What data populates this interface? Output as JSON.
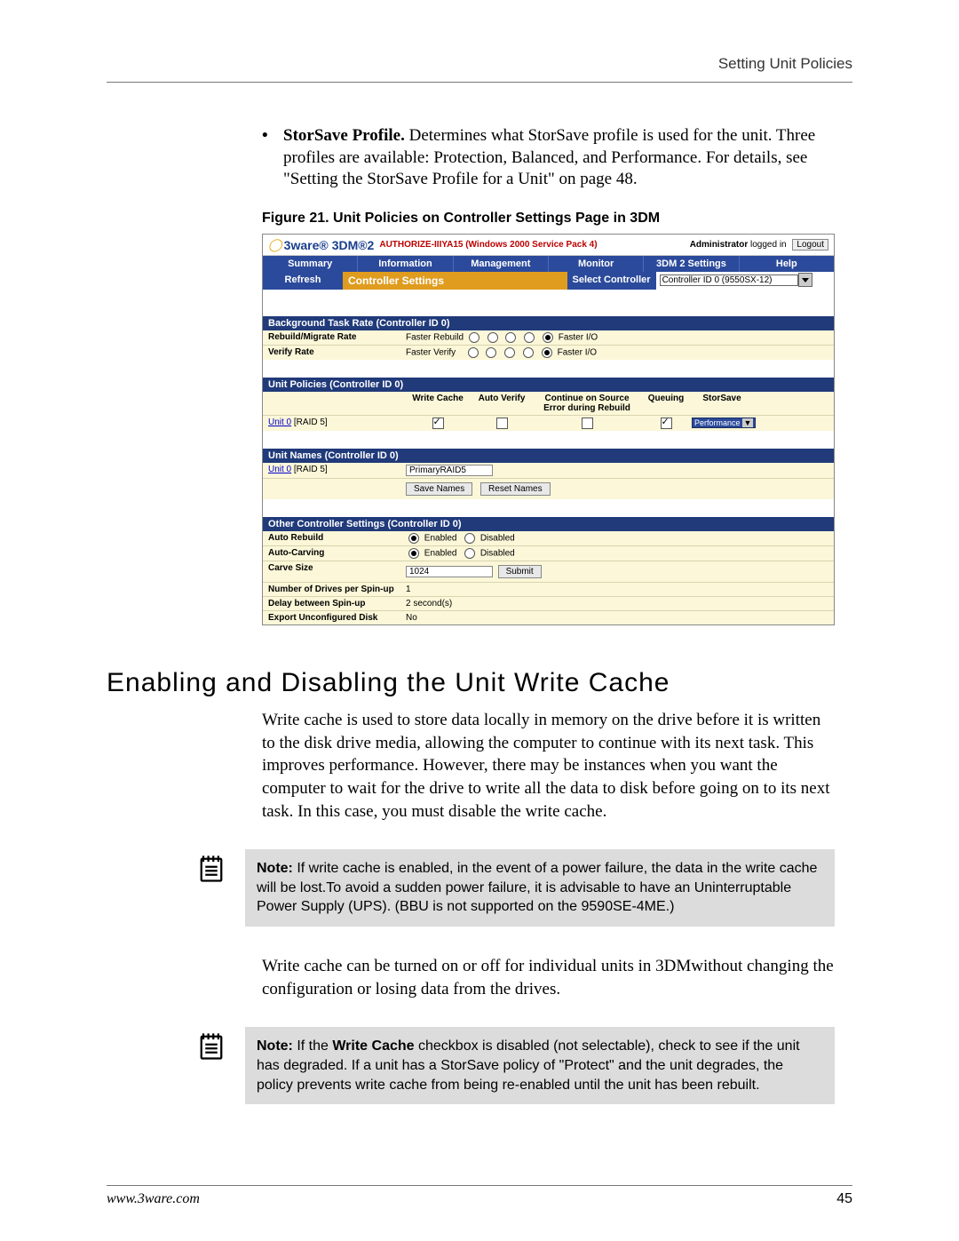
{
  "header": {
    "right": "Setting Unit Policies"
  },
  "bullet": {
    "lead": "StorSave Profile.",
    "rest": " Determines what StorSave profile is used for the unit. Three profiles are available: Protection, Balanced, and Performance. For details, see \"Setting the StorSave Profile for a Unit\" on page 48."
  },
  "figure_caption": "Figure 21.  Unit Policies on Controller Settings Page in 3DM",
  "ss": {
    "logo1": "3ware®",
    "logo2": "3DM®2",
    "auth": "AUTHORIZE-IIIYA15 (Windows 2000 Service Pack 4)",
    "adm": "Administrator",
    "logged": " logged in ",
    "logout": "Logout",
    "tabs": [
      "Summary",
      "Information",
      "Management",
      "Monitor",
      "3DM 2 Settings",
      "Help"
    ],
    "refresh": "Refresh",
    "cs": "Controller Settings",
    "sc": "Select Controller",
    "sel": "Controller ID 0 (9550SX-12)",
    "sec1": "Background Task Rate (Controller ID 0)",
    "r1l": "Rebuild/Migrate Rate",
    "r1a": "Faster Rebuild",
    "r1b": "Faster I/O",
    "r2l": "Verify Rate",
    "r2a": "Faster Verify",
    "r2b": "Faster I/O",
    "sec2": "Unit Policies (Controller ID 0)",
    "uh": [
      "Write Cache",
      "Auto Verify",
      "Continue on Source Error during Rebuild",
      "Queuing",
      "StorSave"
    ],
    "unit0": "Unit 0",
    "raid5": "[RAID 5]",
    "perf": "Performance",
    "sec3": "Unit Names (Controller ID 0)",
    "unitname": "PrimaryRAID5",
    "save": "Save Names",
    "reset": "Reset Names",
    "sec4": "Other Controller Settings (Controller ID 0)",
    "oc": [
      {
        "l": "Auto Rebuild",
        "t": "radio"
      },
      {
        "l": "Auto-Carving",
        "t": "radio"
      },
      {
        "l": "Carve Size",
        "t": "input",
        "v": "1024",
        "btn": "Submit"
      },
      {
        "l": "Number of Drives per Spin-up",
        "t": "text",
        "v": "1"
      },
      {
        "l": "Delay between Spin-up",
        "t": "text",
        "v": "2 second(s)"
      },
      {
        "l": "Export Unconfigured Disk",
        "t": "text",
        "v": "No"
      }
    ],
    "en": "Enabled",
    "dis": "Disabled"
  },
  "h2": "Enabling and Disabling the Unit Write Cache",
  "p1": "Write cache is used to store data locally in memory on the drive before it is written to the disk drive media, allowing the computer to continue with its next task. This improves performance. However, there may be instances when you want the computer to wait for the drive to write all the data to disk before going on to its next task. In this case, you must disable the write cache.",
  "note1": {
    "lead": "Note:",
    "rest": " If write cache is enabled, in the event of a power failure, the data in the write cache will be lost.To avoid a sudden power failure, it is advisable to have an Uninterruptable Power Supply (UPS). (BBU is not supported on the 9590SE-4ME.)"
  },
  "p2": "Write cache can be turned on or off for individual units in 3DMwithout changing the configuration or losing data from the drives.",
  "note2": {
    "lead": "Note:",
    "mid1": " If the ",
    "bold": "Write Cache",
    "rest": " checkbox is disabled (not selectable), check to see if the unit has degraded. If a unit has a StorSave policy of \"Protect\" and the unit degrades, the policy prevents write cache from being re-enabled until the unit has been rebuilt."
  },
  "footer": {
    "url": "www.3ware.com",
    "page": "45"
  }
}
